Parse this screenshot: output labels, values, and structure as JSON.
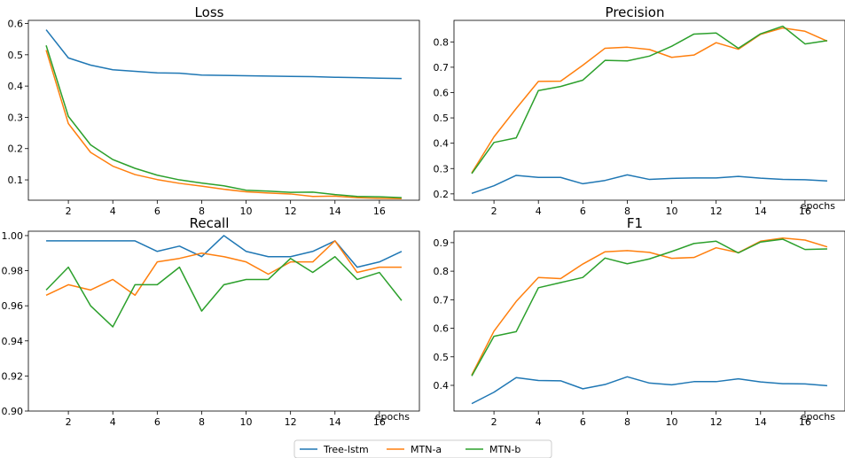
{
  "figure": {
    "legend_position": "bottom-center",
    "series_colors": {
      "Tree-lstm": "#1f77b4",
      "MTN-a": "#ff7f0e",
      "MTN-b": "#2ca02c"
    }
  },
  "chart_data": [
    {
      "type": "line",
      "title": "Loss",
      "xlabel": "",
      "ylabel": "",
      "grid": false,
      "x": [
        1,
        2,
        3,
        4,
        5,
        6,
        7,
        8,
        9,
        10,
        11,
        12,
        13,
        14,
        15,
        16,
        17
      ],
      "xticks": [
        2,
        4,
        6,
        8,
        10,
        12,
        14,
        16
      ],
      "xtick_labels": [
        "2",
        "4",
        "6",
        "8",
        "10",
        "12",
        "14",
        "16"
      ],
      "xlim": [
        0.2,
        17.8
      ],
      "ylim": [
        0.035,
        0.61
      ],
      "yticks": [
        0.1,
        0.2,
        0.3,
        0.4,
        0.5,
        0.6
      ],
      "ytick_labels": [
        "0.1",
        "0.2",
        "0.3",
        "0.4",
        "0.5",
        "0.6"
      ],
      "series": [
        {
          "name": "Tree-lstm",
          "values": [
            0.58,
            0.49,
            0.467,
            0.452,
            0.447,
            0.442,
            0.441,
            0.435,
            0.434,
            0.433,
            0.432,
            0.431,
            0.43,
            0.428,
            0.427,
            0.425,
            0.424
          ]
        },
        {
          "name": "MTN-a",
          "values": [
            0.515,
            0.28,
            0.188,
            0.144,
            0.117,
            0.101,
            0.089,
            0.08,
            0.07,
            0.062,
            0.058,
            0.055,
            0.047,
            0.048,
            0.043,
            0.041,
            0.04
          ]
        },
        {
          "name": "MTN-b",
          "values": [
            0.53,
            0.303,
            0.212,
            0.165,
            0.137,
            0.115,
            0.1,
            0.09,
            0.081,
            0.067,
            0.064,
            0.06,
            0.061,
            0.053,
            0.047,
            0.046,
            0.043
          ]
        }
      ]
    },
    {
      "type": "line",
      "title": "Precision",
      "xlabel": "epochs",
      "ylabel": "",
      "grid": false,
      "x": [
        1,
        2,
        3,
        4,
        5,
        6,
        7,
        8,
        9,
        10,
        11,
        12,
        13,
        14,
        15,
        16,
        17
      ],
      "xticks": [
        2,
        4,
        6,
        8,
        10,
        12,
        14,
        16
      ],
      "xtick_labels": [
        "2",
        "4",
        "6",
        "8",
        "10",
        "12",
        "14",
        "16"
      ],
      "xlim": [
        0.2,
        17.8
      ],
      "ylim": [
        0.175,
        0.885
      ],
      "yticks": [
        0.2,
        0.3,
        0.4,
        0.5,
        0.6,
        0.7,
        0.8
      ],
      "ytick_labels": [
        "0.2",
        "0.3",
        "0.4",
        "0.5",
        "0.6",
        "0.7",
        "0.8"
      ],
      "series": [
        {
          "name": "Tree-lstm",
          "values": [
            0.202,
            0.232,
            0.273,
            0.265,
            0.265,
            0.24,
            0.253,
            0.275,
            0.257,
            0.261,
            0.263,
            0.263,
            0.269,
            0.262,
            0.257,
            0.256,
            0.251
          ]
        },
        {
          "name": "MTN-a",
          "values": [
            0.283,
            0.425,
            0.537,
            0.644,
            0.645,
            0.708,
            0.775,
            0.779,
            0.77,
            0.739,
            0.748,
            0.797,
            0.771,
            0.83,
            0.855,
            0.842,
            0.803
          ]
        },
        {
          "name": "MTN-b",
          "values": [
            0.28,
            0.403,
            0.421,
            0.608,
            0.624,
            0.649,
            0.727,
            0.725,
            0.744,
            0.783,
            0.831,
            0.835,
            0.775,
            0.832,
            0.862,
            0.792,
            0.805
          ]
        }
      ]
    },
    {
      "type": "line",
      "title": "Recall",
      "xlabel": "epochs",
      "ylabel": "",
      "grid": false,
      "x": [
        1,
        2,
        3,
        4,
        5,
        6,
        7,
        8,
        9,
        10,
        11,
        12,
        13,
        14,
        15,
        16,
        17
      ],
      "xticks": [
        2,
        4,
        6,
        8,
        10,
        12,
        14,
        16
      ],
      "xtick_labels": [
        "2",
        "4",
        "6",
        "8",
        "10",
        "12",
        "14",
        "16"
      ],
      "xlim": [
        0.2,
        17.8
      ],
      "ylim": [
        0.9,
        1.0025
      ],
      "yticks": [
        0.9,
        0.92,
        0.94,
        0.96,
        0.98,
        1.0
      ],
      "ytick_labels": [
        "0.90",
        "0.92",
        "0.94",
        "0.96",
        "0.98",
        "1.00"
      ],
      "series": [
        {
          "name": "Tree-lstm",
          "values": [
            0.997,
            0.997,
            0.997,
            0.997,
            0.997,
            0.991,
            0.994,
            0.988,
            1.0,
            0.991,
            0.988,
            0.988,
            0.991,
            0.997,
            0.982,
            0.985,
            0.991
          ]
        },
        {
          "name": "MTN-a",
          "values": [
            0.966,
            0.972,
            0.969,
            0.975,
            0.966,
            0.985,
            0.987,
            0.99,
            0.988,
            0.985,
            0.978,
            0.985,
            0.985,
            0.997,
            0.979,
            0.982,
            0.982
          ]
        },
        {
          "name": "MTN-b",
          "values": [
            0.969,
            0.982,
            0.96,
            0.948,
            0.972,
            0.972,
            0.982,
            0.957,
            0.972,
            0.975,
            0.975,
            0.987,
            0.979,
            0.988,
            0.975,
            0.979,
            0.963
          ]
        }
      ]
    },
    {
      "type": "line",
      "title": "F1",
      "xlabel": "epochs",
      "ylabel": "",
      "grid": false,
      "x": [
        1,
        2,
        3,
        4,
        5,
        6,
        7,
        8,
        9,
        10,
        11,
        12,
        13,
        14,
        15,
        16,
        17
      ],
      "xticks": [
        2,
        4,
        6,
        8,
        10,
        12,
        14,
        16
      ],
      "xtick_labels": [
        "2",
        "4",
        "6",
        "8",
        "10",
        "12",
        "14",
        "16"
      ],
      "xlim": [
        0.2,
        17.8
      ],
      "ylim": [
        0.31,
        0.94
      ],
      "yticks": [
        0.4,
        0.5,
        0.6,
        0.7,
        0.8,
        0.9
      ],
      "ytick_labels": [
        "0.4",
        "0.5",
        "0.6",
        "0.7",
        "0.8",
        "0.9"
      ],
      "series": [
        {
          "name": "Tree-lstm",
          "values": [
            0.336,
            0.376,
            0.427,
            0.417,
            0.416,
            0.388,
            0.403,
            0.43,
            0.408,
            0.402,
            0.413,
            0.413,
            0.423,
            0.412,
            0.406,
            0.405,
            0.399
          ]
        },
        {
          "name": "MTN-a",
          "values": [
            0.436,
            0.59,
            0.694,
            0.778,
            0.774,
            0.825,
            0.868,
            0.872,
            0.866,
            0.845,
            0.848,
            0.882,
            0.865,
            0.905,
            0.916,
            0.909,
            0.885
          ]
        },
        {
          "name": "MTN-b",
          "values": [
            0.433,
            0.572,
            0.588,
            0.742,
            0.76,
            0.778,
            0.846,
            0.826,
            0.843,
            0.869,
            0.897,
            0.905,
            0.864,
            0.902,
            0.912,
            0.876,
            0.878
          ]
        }
      ]
    }
  ],
  "legend": {
    "entries": [
      "Tree-lstm",
      "MTN-a",
      "MTN-b"
    ]
  }
}
